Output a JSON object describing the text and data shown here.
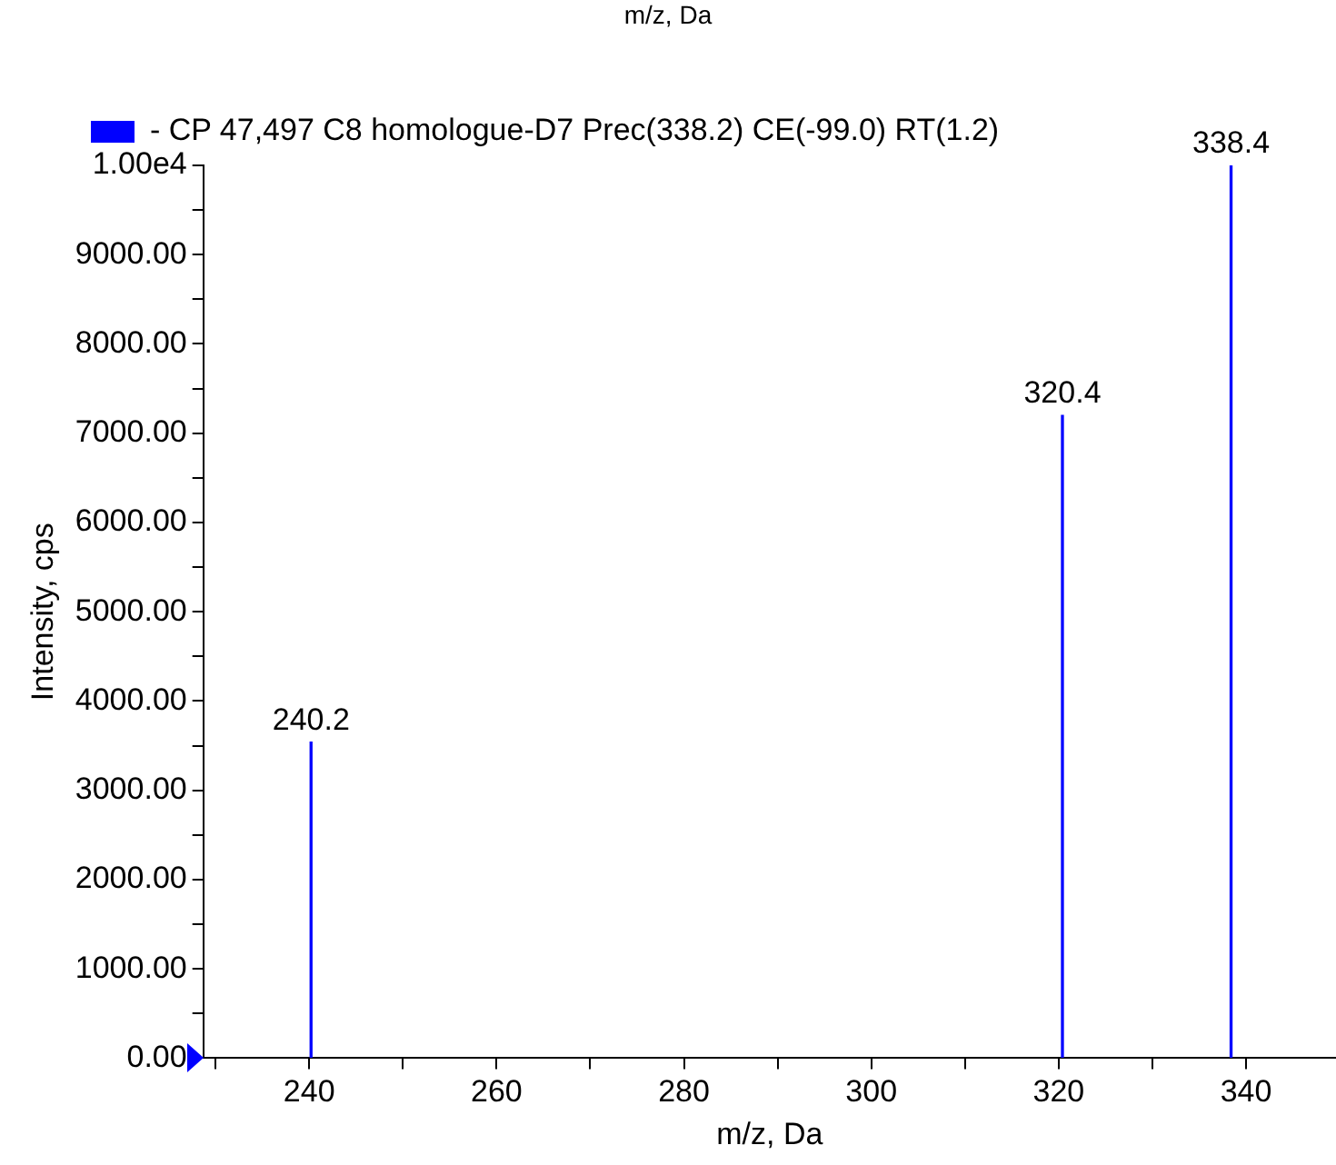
{
  "chart_data": {
    "type": "bar",
    "xlabel": "m/z, Da",
    "ylabel": "Intensity, cps",
    "x": [
      240.2,
      320.4,
      338.4
    ],
    "series": [
      {
        "name": "- CP 47,497 C8 homologue-D7 Prec(338.2) CE(-99.0) RT(1.2)",
        "color": "#0000ff",
        "values": [
          3540,
          7200,
          10000
        ]
      }
    ],
    "xlim": [
      228.7,
      349.6
    ],
    "xticks": [
      {
        "value": 230,
        "label": null
      },
      240,
      {
        "value": 250,
        "label": null
      },
      260,
      {
        "value": 270,
        "label": null
      },
      280,
      {
        "value": 290,
        "label": null
      },
      300,
      {
        "value": 310,
        "label": null
      },
      320,
      {
        "value": 330,
        "label": null
      },
      340
    ],
    "ylim": [
      0,
      10000
    ],
    "yticks": [
      {
        "value": 0,
        "label": "0.00"
      },
      {
        "value": 500,
        "label": null
      },
      {
        "value": 1000,
        "label": "1000.00"
      },
      {
        "value": 1500,
        "label": null
      },
      {
        "value": 2000,
        "label": "2000.00"
      },
      {
        "value": 2500,
        "label": null
      },
      {
        "value": 3000,
        "label": "3000.00"
      },
      {
        "value": 3500,
        "label": null
      },
      {
        "value": 4000,
        "label": "4000.00"
      },
      {
        "value": 4500,
        "label": null
      },
      {
        "value": 5000,
        "label": "5000.00"
      },
      {
        "value": 5500,
        "label": null
      },
      {
        "value": 6000,
        "label": "6000.00"
      },
      {
        "value": 6500,
        "label": null
      },
      {
        "value": 7000,
        "label": "7000.00"
      },
      {
        "value": 7500,
        "label": null
      },
      {
        "value": 8000,
        "label": "8000.00"
      },
      {
        "value": 8500,
        "label": null
      },
      {
        "value": 9000,
        "label": "9000.00"
      },
      {
        "value": 9500,
        "label": null
      },
      {
        "value": 10000,
        "label": "1.00e4"
      }
    ],
    "grid": false,
    "legend": "top left",
    "annotations": [
      "m/z, Da",
      {
        "text": "240.2",
        "x": 240.2,
        "y": 3540
      },
      {
        "text": "320.4",
        "x": 320.4,
        "y": 7200
      },
      {
        "text": "338.4",
        "x": 338.4,
        "y": 10000
      }
    ]
  }
}
